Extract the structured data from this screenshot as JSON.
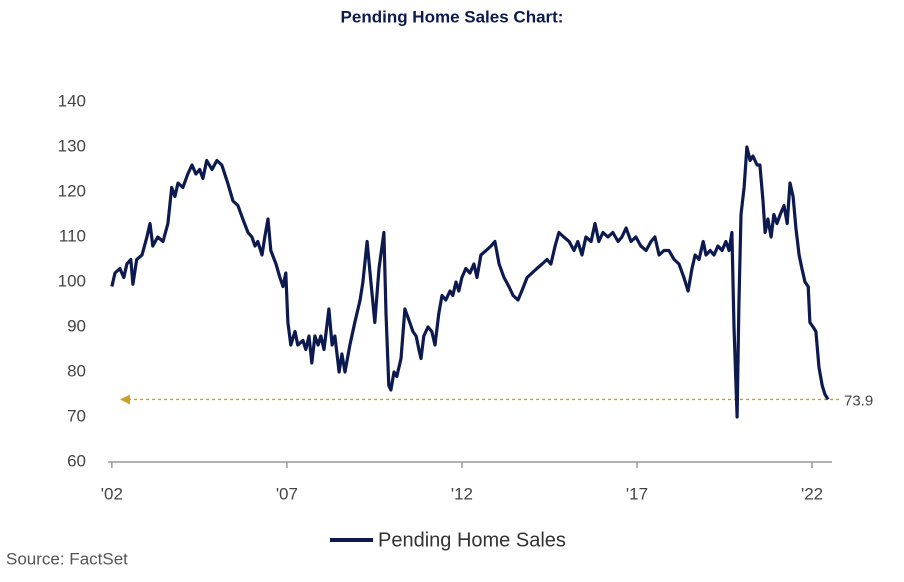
{
  "chart_data": {
    "type": "line",
    "title": "Pending Home Sales Chart:",
    "source": "Source: FactSet",
    "xlim": [
      2001.89,
      2022.57
    ],
    "xticks": [
      {
        "value": 2002,
        "label": "'02"
      },
      {
        "value": 2007,
        "label": "'07"
      },
      {
        "value": 2012,
        "label": "'12"
      },
      {
        "value": 2017,
        "label": "'17"
      },
      {
        "value": 2022,
        "label": "'22"
      }
    ],
    "ylim": [
      60,
      140
    ],
    "yticks": [
      60,
      70,
      80,
      90,
      100,
      110,
      120,
      130,
      140
    ],
    "grid": false,
    "legend": "bottom",
    "reference_line": {
      "value": 73.9,
      "color": "#c9a227"
    },
    "x": [
      2002.0,
      2002.09,
      2002.23,
      2002.34,
      2002.43,
      2002.54,
      2002.6,
      2002.71,
      2002.86,
      2003.0,
      2003.09,
      2003.17,
      2003.31,
      2003.46,
      2003.6,
      2003.71,
      2003.8,
      2003.89,
      2004.03,
      2004.17,
      2004.29,
      2004.4,
      2004.51,
      2004.6,
      2004.71,
      2004.86,
      2005.0,
      2005.14,
      2005.31,
      2005.46,
      2005.6,
      2005.74,
      2005.89,
      2006.0,
      2006.09,
      2006.17,
      2006.29,
      2006.37,
      2006.46,
      2006.54,
      2006.69,
      2006.8,
      2006.89,
      2006.97,
      2007.03,
      2007.11,
      2007.23,
      2007.31,
      2007.46,
      2007.54,
      2007.63,
      2007.71,
      2007.8,
      2007.89,
      2007.97,
      2008.06,
      2008.2,
      2008.29,
      2008.37,
      2008.49,
      2008.57,
      2008.66,
      2008.8,
      2008.94,
      2009.09,
      2009.17,
      2009.29,
      2009.4,
      2009.51,
      2009.63,
      2009.77,
      2009.83,
      2009.91,
      2009.97,
      2010.06,
      2010.14,
      2010.26,
      2010.37,
      2010.51,
      2010.6,
      2010.69,
      2010.77,
      2010.83,
      2010.91,
      2011.03,
      2011.14,
      2011.23,
      2011.34,
      2011.43,
      2011.54,
      2011.66,
      2011.74,
      2011.83,
      2011.91,
      2012.0,
      2012.11,
      2012.23,
      2012.34,
      2012.43,
      2012.54,
      2012.69,
      2012.83,
      2012.94,
      2013.06,
      2013.2,
      2013.34,
      2013.46,
      2013.6,
      2013.71,
      2013.86,
      2014.0,
      2014.14,
      2014.29,
      2014.43,
      2014.54,
      2014.66,
      2014.77,
      2014.91,
      2015.06,
      2015.2,
      2015.31,
      2015.43,
      2015.54,
      2015.69,
      2015.8,
      2015.91,
      2016.03,
      2016.17,
      2016.31,
      2016.46,
      2016.57,
      2016.69,
      2016.83,
      2016.97,
      2017.11,
      2017.26,
      2017.4,
      2017.51,
      2017.63,
      2017.77,
      2017.91,
      2018.06,
      2018.2,
      2018.34,
      2018.46,
      2018.57,
      2018.66,
      2018.77,
      2018.89,
      2018.97,
      2019.09,
      2019.2,
      2019.31,
      2019.43,
      2019.54,
      2019.63,
      2019.71,
      2019.77,
      2019.86,
      2019.91,
      2019.97,
      2020.06,
      2020.14,
      2020.23,
      2020.31,
      2020.43,
      2020.51,
      2020.6,
      2020.66,
      2020.74,
      2020.83,
      2020.91,
      2021.0,
      2021.09,
      2021.2,
      2021.29,
      2021.37,
      2021.46,
      2021.54,
      2021.63,
      2021.71,
      2021.8,
      2021.89,
      2021.94,
      2022.03,
      2022.11,
      2022.2,
      2022.29,
      2022.37,
      2022.46
    ],
    "series": [
      {
        "name": "Pending Home Sales",
        "color": "#0d1a4f",
        "values": [
          99,
          102,
          103,
          101,
          104,
          105,
          99.5,
          105,
          106,
          110,
          113,
          108,
          110,
          109,
          113,
          121,
          119,
          122,
          121,
          124,
          126,
          124,
          125,
          123,
          127,
          125,
          127,
          126,
          122,
          118,
          117,
          114,
          111,
          110,
          108,
          109,
          106,
          110,
          114,
          107,
          104,
          101,
          99,
          102,
          91,
          86,
          89,
          86,
          87,
          85,
          88,
          82,
          88,
          86,
          88,
          85,
          94,
          86,
          88,
          80,
          84,
          80,
          86,
          91,
          96,
          100,
          109,
          100,
          91,
          103,
          111,
          93,
          77,
          76,
          80,
          79,
          83,
          94,
          91,
          89,
          88,
          85,
          83,
          88,
          90,
          89,
          86,
          93,
          97,
          96,
          98,
          97,
          100,
          98,
          101,
          103,
          102,
          104,
          101,
          106,
          107,
          108,
          109,
          104,
          101,
          99,
          97,
          96,
          98,
          101,
          102,
          103,
          104,
          105,
          104,
          108,
          111,
          110,
          109,
          107,
          109,
          106,
          110,
          109,
          113,
          109,
          111,
          110,
          111,
          109,
          110,
          112,
          109,
          110,
          108,
          107,
          109,
          110,
          106,
          107,
          107,
          105,
          104,
          101,
          98,
          103,
          106,
          105,
          109,
          106,
          107,
          106,
          108,
          107,
          109,
          107,
          111,
          90,
          70,
          95,
          115,
          121,
          130,
          127,
          128,
          126,
          126,
          118,
          111,
          114,
          110,
          115,
          113,
          115,
          117,
          113,
          122,
          119,
          112,
          106,
          103,
          100,
          99,
          91,
          90,
          89,
          81,
          77,
          75,
          73.9
        ]
      }
    ]
  }
}
